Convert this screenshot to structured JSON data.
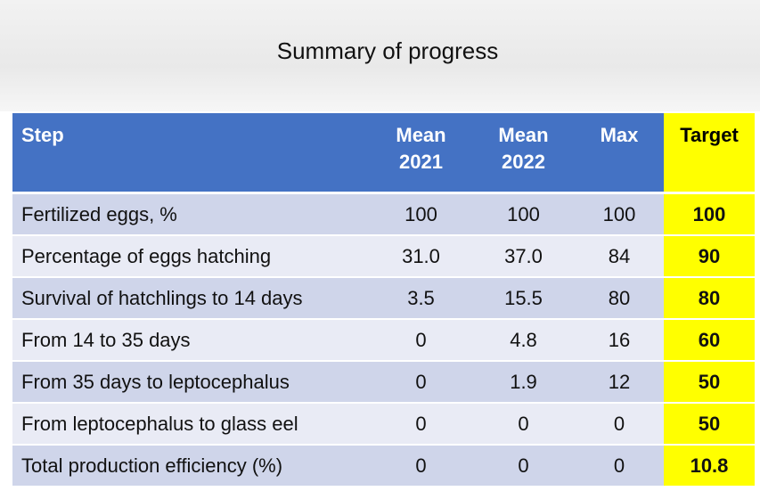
{
  "title": "Summary of progress",
  "table": {
    "header": [
      "Step",
      "Mean\n2021",
      "Mean\n2022",
      "Max",
      "Target"
    ],
    "rows": [
      [
        "Fertilized eggs, %",
        "100",
        "100",
        "100",
        "100"
      ],
      [
        "Percentage of eggs hatching",
        "31.0",
        "37.0",
        "84",
        "90"
      ],
      [
        "Survival of hatchlings to 14 days",
        "3.5",
        "15.5",
        "80",
        "80"
      ],
      [
        "From 14 to 35 days",
        "0",
        "4.8",
        "16",
        "60"
      ],
      [
        "From 35 days to leptocephalus",
        "0",
        "1.9",
        "12",
        "50"
      ],
      [
        "From leptocephalus to glass eel",
        "0",
        "0",
        "0",
        "50"
      ],
      [
        "Total production efficiency (%)",
        "0",
        "0",
        "0",
        "10.8"
      ]
    ]
  }
}
